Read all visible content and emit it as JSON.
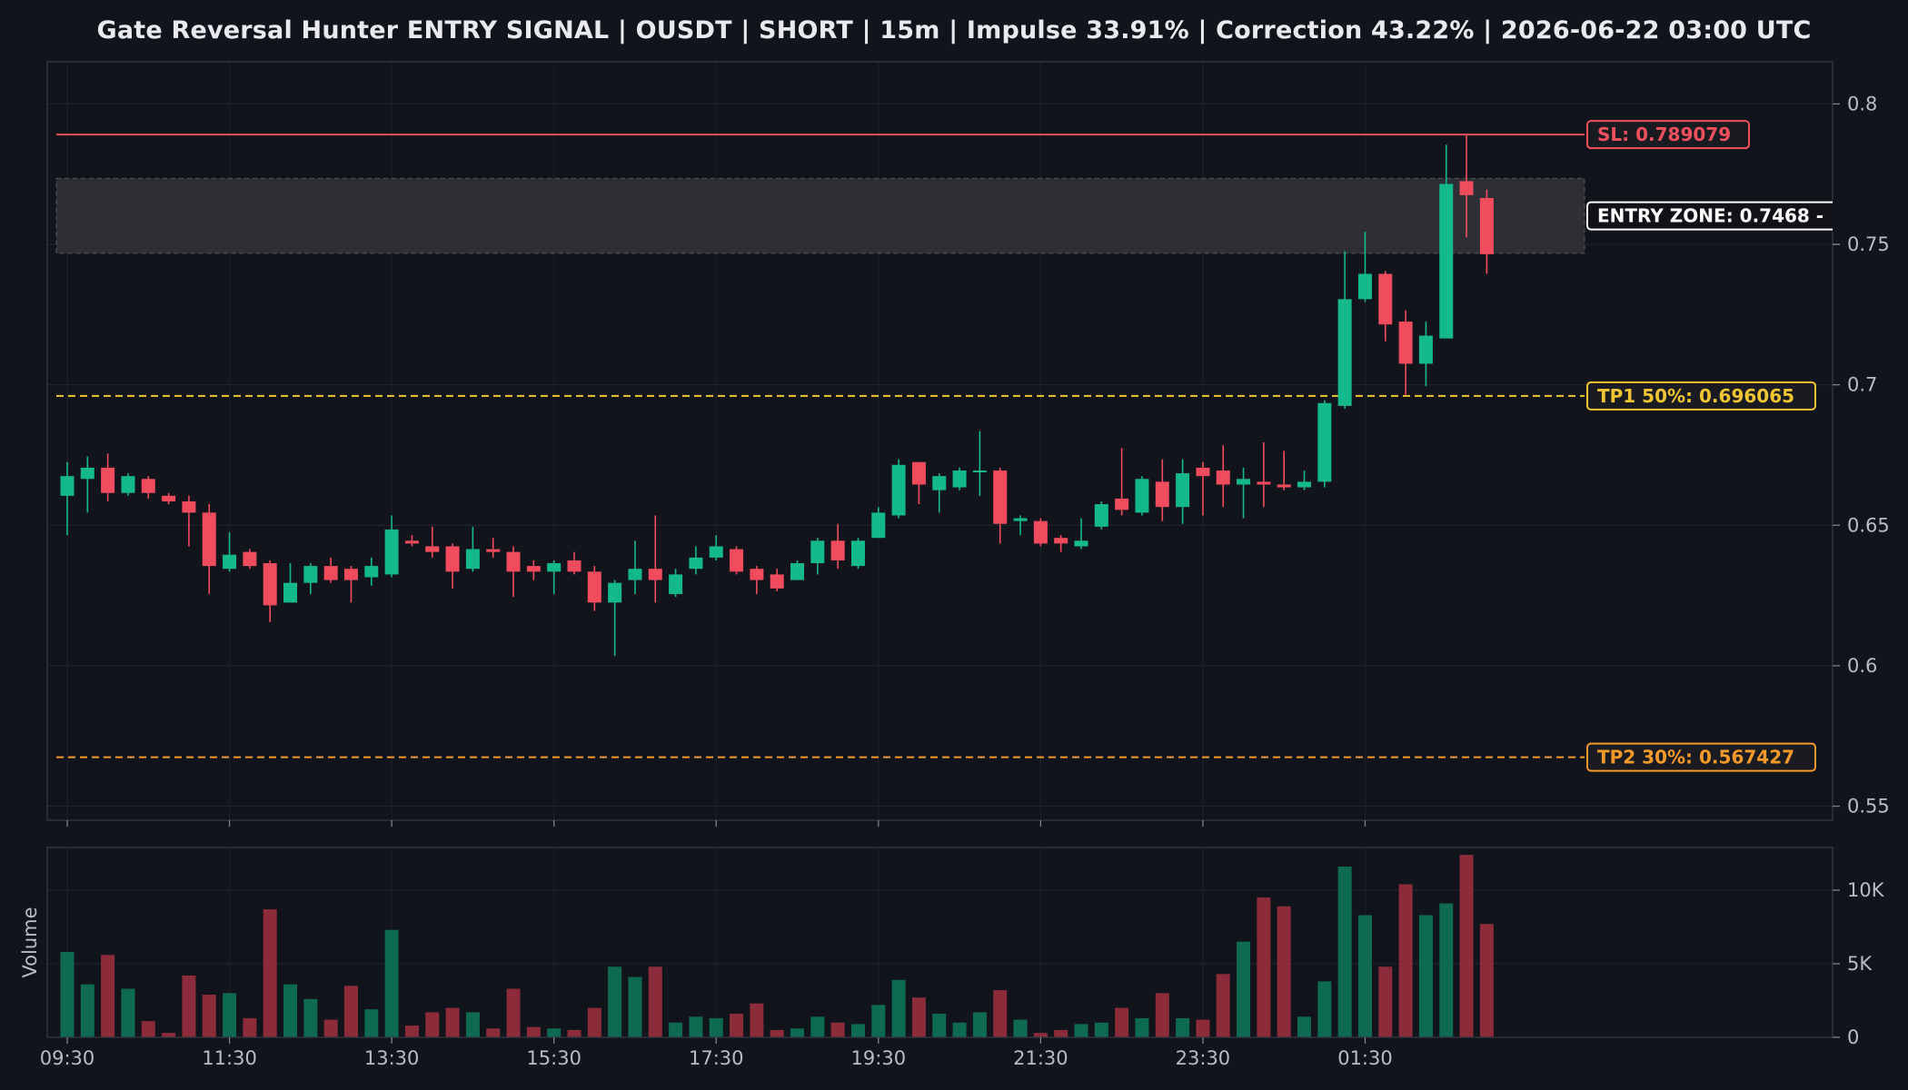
{
  "chart_data": {
    "type": "candlestick",
    "title": "Gate Reversal Hunter ENTRY SIGNAL | OUSDT | SHORT | 15m | Impulse 33.91% | Correction 43.22% | 2026-06-22 03:00 UTC",
    "x_tick_labels": [
      "09:30",
      "11:30",
      "13:30",
      "15:30",
      "17:30",
      "19:30",
      "21:30",
      "23:30",
      "01:30"
    ],
    "price_axis": {
      "ylim": [
        0.545,
        0.815
      ],
      "ticks": [
        0.55,
        0.6,
        0.65,
        0.7,
        0.75,
        0.8
      ],
      "tick_labels": [
        "0.55",
        "0.6",
        "0.65",
        "0.7",
        "0.75",
        "0.8"
      ]
    },
    "volume_axis": {
      "ylabel": "Volume",
      "ylim": [
        0,
        12900
      ],
      "ticks": [
        0,
        5000,
        10000
      ],
      "tick_labels": [
        "0",
        "5K",
        "10K"
      ]
    },
    "levels": [
      {
        "key": "sl",
        "label": "SL: 0.789079",
        "value": 0.789079,
        "style": "solid",
        "color": "#f0505e"
      },
      {
        "key": "tp1",
        "label": "TP1 50%: 0.696065",
        "value": 0.696065,
        "style": "dashed",
        "color": "#f0c531"
      },
      {
        "key": "tp2",
        "label": "TP2 30%: 0.567427",
        "value": 0.567427,
        "style": "dashed",
        "color": "#f59a2a"
      }
    ],
    "entry_zone": {
      "label": "ENTRY ZONE: 0.7468 - ",
      "low": 0.7468,
      "high": 0.7735
    },
    "colors": {
      "up": "#13b88d",
      "down": "#f14c5e",
      "vol_up": "#0e6b52",
      "vol_down": "#8c2c3a"
    },
    "candles": [
      [
        0.6605,
        0.6675,
        0.6465,
        0.6725
      ],
      [
        0.6665,
        0.6705,
        0.6545,
        0.6745
      ],
      [
        0.6705,
        0.6615,
        0.6585,
        0.6755
      ],
      [
        0.6615,
        0.6675,
        0.6605,
        0.6685
      ],
      [
        0.6665,
        0.6615,
        0.6595,
        0.6675
      ],
      [
        0.6605,
        0.6585,
        0.6575,
        0.6615
      ],
      [
        0.6585,
        0.6545,
        0.6425,
        0.6605
      ],
      [
        0.6545,
        0.6355,
        0.6255,
        0.6575
      ],
      [
        0.6345,
        0.6395,
        0.6335,
        0.6475
      ],
      [
        0.6405,
        0.6355,
        0.6345,
        0.6415
      ],
      [
        0.6365,
        0.6215,
        0.6155,
        0.6375
      ],
      [
        0.6225,
        0.6295,
        0.6225,
        0.6365
      ],
      [
        0.6295,
        0.6355,
        0.6255,
        0.6365
      ],
      [
        0.6355,
        0.6305,
        0.6295,
        0.6385
      ],
      [
        0.6345,
        0.6305,
        0.6225,
        0.6355
      ],
      [
        0.6315,
        0.6355,
        0.6285,
        0.6385
      ],
      [
        0.6325,
        0.6485,
        0.6315,
        0.6535
      ],
      [
        0.6445,
        0.6435,
        0.6425,
        0.6465
      ],
      [
        0.6425,
        0.6405,
        0.6385,
        0.6495
      ],
      [
        0.6425,
        0.6335,
        0.6275,
        0.6435
      ],
      [
        0.6345,
        0.6415,
        0.6335,
        0.6495
      ],
      [
        0.6415,
        0.6405,
        0.6385,
        0.6455
      ],
      [
        0.6405,
        0.6335,
        0.6245,
        0.6425
      ],
      [
        0.6355,
        0.6335,
        0.6305,
        0.6375
      ],
      [
        0.6335,
        0.6365,
        0.6255,
        0.6375
      ],
      [
        0.6375,
        0.6335,
        0.6325,
        0.6405
      ],
      [
        0.6335,
        0.6225,
        0.6195,
        0.6355
      ],
      [
        0.6225,
        0.6295,
        0.6035,
        0.6305
      ],
      [
        0.6305,
        0.6345,
        0.6255,
        0.6445
      ],
      [
        0.6345,
        0.6305,
        0.6225,
        0.6535
      ],
      [
        0.6255,
        0.6325,
        0.6245,
        0.6345
      ],
      [
        0.6345,
        0.6385,
        0.6325,
        0.6425
      ],
      [
        0.6385,
        0.6425,
        0.6375,
        0.6465
      ],
      [
        0.6415,
        0.6335,
        0.6325,
        0.6425
      ],
      [
        0.6345,
        0.6305,
        0.6255,
        0.6355
      ],
      [
        0.6325,
        0.6275,
        0.6265,
        0.6345
      ],
      [
        0.6305,
        0.6365,
        0.6305,
        0.6375
      ],
      [
        0.6365,
        0.6445,
        0.6325,
        0.6455
      ],
      [
        0.6445,
        0.6375,
        0.6345,
        0.6505
      ],
      [
        0.6355,
        0.6445,
        0.6345,
        0.6455
      ],
      [
        0.6455,
        0.6545,
        0.6455,
        0.6565
      ],
      [
        0.6535,
        0.6715,
        0.6525,
        0.6735
      ],
      [
        0.6725,
        0.6645,
        0.6575,
        0.6725
      ],
      [
        0.6625,
        0.6675,
        0.6545,
        0.6685
      ],
      [
        0.6635,
        0.6695,
        0.6625,
        0.6705
      ],
      [
        0.6695,
        0.6695,
        0.6605,
        0.6835
      ],
      [
        0.6695,
        0.6505,
        0.6435,
        0.6705
      ],
      [
        0.6515,
        0.6525,
        0.6465,
        0.6535
      ],
      [
        0.6515,
        0.6435,
        0.6425,
        0.6525
      ],
      [
        0.6455,
        0.6435,
        0.6405,
        0.6465
      ],
      [
        0.6425,
        0.6445,
        0.6415,
        0.6525
      ],
      [
        0.6495,
        0.6575,
        0.6485,
        0.6585
      ],
      [
        0.6595,
        0.6555,
        0.6535,
        0.6775
      ],
      [
        0.6545,
        0.6665,
        0.6535,
        0.6675
      ],
      [
        0.6655,
        0.6565,
        0.6515,
        0.6735
      ],
      [
        0.6565,
        0.6685,
        0.6505,
        0.6735
      ],
      [
        0.6705,
        0.6675,
        0.6535,
        0.6725
      ],
      [
        0.6695,
        0.6645,
        0.6565,
        0.6785
      ],
      [
        0.6645,
        0.6665,
        0.6525,
        0.6705
      ],
      [
        0.6655,
        0.6645,
        0.6565,
        0.6795
      ],
      [
        0.6645,
        0.6635,
        0.6625,
        0.6765
      ],
      [
        0.6635,
        0.6655,
        0.6625,
        0.6695
      ],
      [
        0.6655,
        0.6935,
        0.6635,
        0.6945
      ],
      [
        0.6925,
        0.7305,
        0.6915,
        0.7475
      ],
      [
        0.7305,
        0.7395,
        0.7295,
        0.7545
      ],
      [
        0.7395,
        0.7215,
        0.7155,
        0.7405
      ],
      [
        0.7225,
        0.7075,
        0.6965,
        0.7265
      ],
      [
        0.7075,
        0.7175,
        0.6995,
        0.7225
      ],
      [
        0.7165,
        0.7715,
        0.7165,
        0.7855
      ],
      [
        0.7725,
        0.7675,
        0.7525,
        0.7891
      ],
      [
        0.7665,
        0.7465,
        0.7395,
        0.7695
      ]
    ],
    "volumes": [
      5800,
      3600,
      5600,
      3300,
      1100,
      300,
      4200,
      2900,
      3000,
      1300,
      8700,
      3600,
      2600,
      1200,
      3500,
      1900,
      7300,
      800,
      1700,
      2000,
      1700,
      600,
      3300,
      700,
      600,
      500,
      2000,
      4800,
      4100,
      4800,
      1000,
      1400,
      1300,
      1600,
      2300,
      500,
      600,
      1400,
      1000,
      900,
      2200,
      3900,
      2700,
      1600,
      1000,
      1700,
      3200,
      1200,
      300,
      500,
      900,
      1000,
      2000,
      1300,
      3000,
      1300,
      1200,
      4300,
      6500,
      9500,
      8900,
      1400,
      3800,
      11600,
      8300,
      4800,
      10400,
      8300,
      9100,
      12400,
      7700
    ]
  }
}
